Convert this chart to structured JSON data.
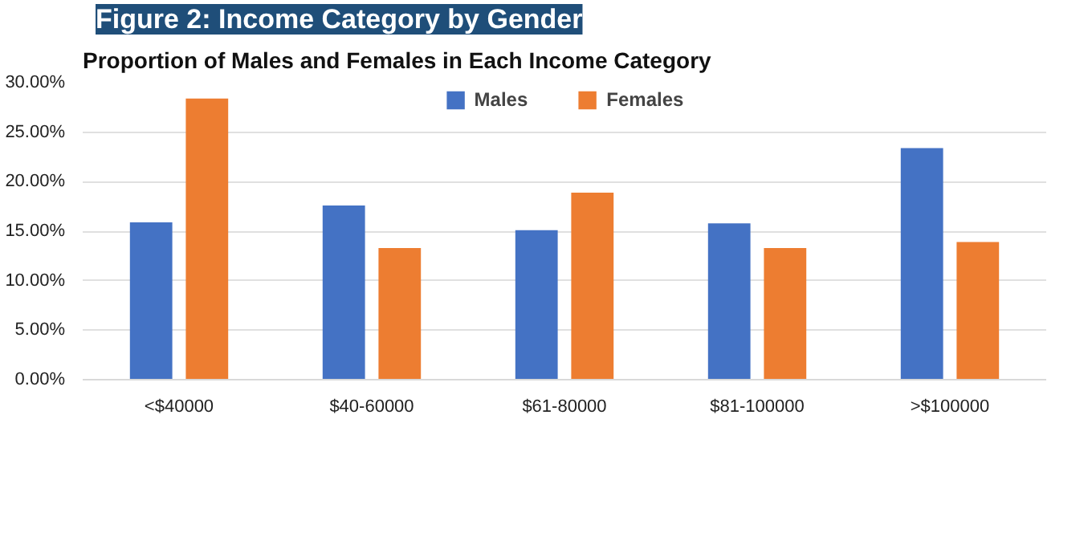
{
  "chart_data": {
    "type": "bar",
    "title": "Figure 2: Income Category by Gender",
    "subtitle": "Proportion of Males and Females in Each Income Category",
    "categories": [
      "<$40000",
      "$40-60000",
      "$61-80000",
      "$81-100000",
      ">$100000"
    ],
    "series": [
      {
        "name": "Males",
        "color": "#4472c4",
        "values": [
          15.9,
          17.6,
          15.1,
          15.8,
          23.4
        ]
      },
      {
        "name": "Females",
        "color": "#ed7d31",
        "values": [
          28.4,
          13.3,
          18.9,
          13.3,
          13.9
        ]
      }
    ],
    "ylim": [
      0,
      30
    ],
    "yticks": [
      {
        "value": 0,
        "label": "0.00%"
      },
      {
        "value": 5,
        "label": "5.00%"
      },
      {
        "value": 10,
        "label": "10.00%"
      },
      {
        "value": 15,
        "label": "15.00%"
      },
      {
        "value": 20,
        "label": "20.00%"
      },
      {
        "value": 25,
        "label": "25.00%"
      },
      {
        "value": 30,
        "label": "30.00%"
      }
    ],
    "grid": "y",
    "legend": "top"
  }
}
